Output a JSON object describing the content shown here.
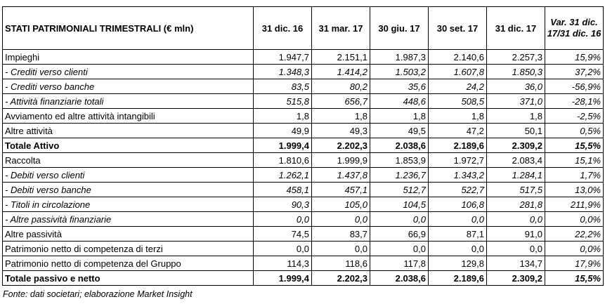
{
  "table": {
    "headers": {
      "title": "STATI PATRIMONIALI TRIMESTRALI (€ mln)",
      "periods": [
        "31 dic. 16",
        "31 mar. 17",
        "30 giu. 17",
        "30 set. 17",
        "31 dic. 17"
      ],
      "variation": "Var. 31 dic. 17/31 dic. 16"
    },
    "rows": [
      {
        "label": "Impieghi",
        "values": [
          "1.947,7",
          "2.151,1",
          "1.987,3",
          "2.140,6",
          "2.257,3"
        ],
        "var": "15,9%",
        "style": "normal"
      },
      {
        "label": "- Crediti verso clienti",
        "values": [
          "1.348,3",
          "1.414,2",
          "1.503,2",
          "1.607,8",
          "1.850,3"
        ],
        "var": "37,2%",
        "style": "italic"
      },
      {
        "label": "- Crediti verso banche",
        "values": [
          "83,5",
          "80,2",
          "35,6",
          "24,2",
          "36,0"
        ],
        "var": "-56,9%",
        "style": "italic"
      },
      {
        "label": "- Attività finanziarie totali",
        "values": [
          "515,8",
          "656,7",
          "448,6",
          "508,5",
          "371,0"
        ],
        "var": "-28,1%",
        "style": "italic"
      },
      {
        "label": "Avviamento ed altre attività intangibili",
        "values": [
          "1,8",
          "1,8",
          "1,8",
          "1,8",
          "1,8"
        ],
        "var": "-2,5%",
        "style": "normal"
      },
      {
        "label": "Altre attività",
        "values": [
          "49,9",
          "49,3",
          "49,5",
          "47,2",
          "50,1"
        ],
        "var": "0,5%",
        "style": "normal"
      },
      {
        "label": "Totale Attivo",
        "values": [
          "1.999,4",
          "2.202,3",
          "2.038,6",
          "2.189,6",
          "2.309,2"
        ],
        "var": "15,5%",
        "style": "bold"
      },
      {
        "label": "Raccolta",
        "values": [
          "1.810,6",
          "1.999,9",
          "1.853,9",
          "1.972,7",
          "2.083,4"
        ],
        "var": "15,1%",
        "style": "normal"
      },
      {
        "label": "- Debiti verso clienti",
        "values": [
          "1.262,1",
          "1.437,8",
          "1.236,7",
          "1.343,2",
          "1.284,1"
        ],
        "var": "1,7%",
        "style": "italic"
      },
      {
        "label": "- Debiti verso banche",
        "values": [
          "458,1",
          "457,1",
          "512,7",
          "522,7",
          "517,5"
        ],
        "var": "13,0%",
        "style": "italic"
      },
      {
        "label": "- Titoli in circolazione",
        "values": [
          "90,3",
          "105,0",
          "104,5",
          "106,8",
          "281,8"
        ],
        "var": "211,9%",
        "style": "italic"
      },
      {
        "label": "- Altre passività finanziarie",
        "values": [
          "0,0",
          "0,0",
          "0,0",
          "0,0",
          "0,0"
        ],
        "var": "0,0%",
        "style": "italic"
      },
      {
        "label": "Altre passività",
        "values": [
          "74,5",
          "83,7",
          "66,9",
          "87,1",
          "91,0"
        ],
        "var": "22,2%",
        "style": "normal"
      },
      {
        "label": "Patrimonio netto di competenza di terzi",
        "values": [
          "0,0",
          "0,0",
          "0,0",
          "0,0",
          "0,0"
        ],
        "var": "0,0%",
        "style": "normal"
      },
      {
        "label": "Patrimonio netto di competenza del Gruppo",
        "values": [
          "114,3",
          "118,6",
          "117,8",
          "129,8",
          "134,7"
        ],
        "var": "17,9%",
        "style": "normal"
      },
      {
        "label": "Totale passivo e netto",
        "values": [
          "1.999,4",
          "2.202,3",
          "2.038,6",
          "2.189,6",
          "2.309,2"
        ],
        "var": "15,5%",
        "style": "bold"
      }
    ]
  },
  "source": "Fonte: dati societari; elaborazione Market Insight"
}
